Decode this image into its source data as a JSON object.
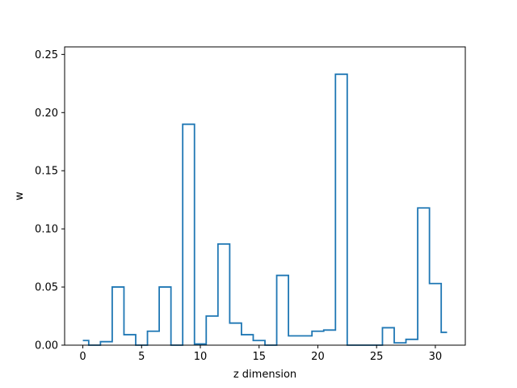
{
  "chart_data": {
    "type": "step",
    "title": "",
    "xlabel": "z dimension",
    "ylabel": "w",
    "xlim": [
      -1.55,
      32.55
    ],
    "ylim": [
      0,
      0.2565
    ],
    "xticks": [
      0,
      5,
      10,
      15,
      20,
      25,
      30
    ],
    "xtick_labels": [
      "0",
      "5",
      "10",
      "15",
      "20",
      "25",
      "30"
    ],
    "yticks": [
      0.0,
      0.05,
      0.1,
      0.15,
      0.2,
      0.25
    ],
    "ytick_labels": [
      "0.00",
      "0.05",
      "0.10",
      "0.15",
      "0.20",
      "0.25"
    ],
    "grid": false,
    "series": [
      {
        "color": "#1f77b4",
        "x": [
          0,
          1,
          2,
          3,
          4,
          5,
          6,
          7,
          8,
          9,
          10,
          11,
          12,
          13,
          14,
          15,
          16,
          17,
          18,
          19,
          20,
          21,
          22,
          23,
          24,
          25,
          26,
          27,
          28,
          29,
          30,
          31
        ],
        "values": [
          0.004,
          0.0,
          0.003,
          0.05,
          0.009,
          0.0,
          0.012,
          0.05,
          0.0,
          0.19,
          0.001,
          0.025,
          0.087,
          0.019,
          0.009,
          0.004,
          0.0,
          0.06,
          0.008,
          0.008,
          0.012,
          0.013,
          0.233,
          0.0,
          0.0,
          0.0,
          0.015,
          0.002,
          0.005,
          0.118,
          0.053,
          0.011
        ]
      }
    ]
  }
}
